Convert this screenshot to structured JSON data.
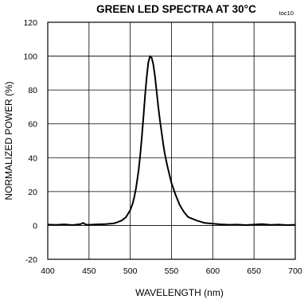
{
  "chart_data": {
    "type": "line",
    "title": "GREEN LED SPECTRA AT 30°C",
    "tag": "toc10",
    "xlabel": "WAVELENGTH (nm)",
    "ylabel": "NORMALIZED POWER (%)",
    "xlim": [
      400,
      700
    ],
    "ylim": [
      -20,
      120
    ],
    "xticks": [
      400,
      450,
      500,
      550,
      600,
      650,
      700
    ],
    "yticks": [
      -20,
      0,
      20,
      40,
      60,
      80,
      100,
      120
    ],
    "grid": true,
    "series": [
      {
        "color": "#000000",
        "x": [
          400,
          410,
          420,
          430,
          440,
          443,
          446,
          450,
          460,
          470,
          480,
          485,
          490,
          495,
          500,
          503,
          505,
          507,
          510,
          512,
          514,
          516,
          518,
          520,
          522,
          524,
          526,
          528,
          530,
          532,
          534,
          536,
          538,
          540,
          542,
          545,
          550,
          555,
          560,
          565,
          570,
          580,
          590,
          600,
          610,
          620,
          630,
          640,
          650,
          660,
          670,
          680,
          690,
          700
        ],
        "y": [
          0.5,
          0.3,
          0.6,
          0.2,
          0.8,
          1.5,
          0.5,
          0.4,
          0.6,
          0.8,
          1.2,
          2.0,
          3.0,
          5.0,
          9.0,
          13.0,
          17.0,
          22.0,
          32.0,
          41.0,
          52.0,
          64.0,
          77.0,
          88.0,
          96.5,
          100.0,
          99.0,
          95.0,
          88.0,
          79.0,
          70.0,
          62.0,
          55.0,
          48.0,
          42.0,
          35.0,
          25.0,
          18.0,
          12.0,
          8.0,
          5.0,
          3.0,
          1.5,
          1.0,
          0.6,
          0.4,
          0.5,
          0.2,
          0.5,
          0.8,
          0.3,
          0.5,
          0.2,
          0.4
        ]
      }
    ]
  }
}
